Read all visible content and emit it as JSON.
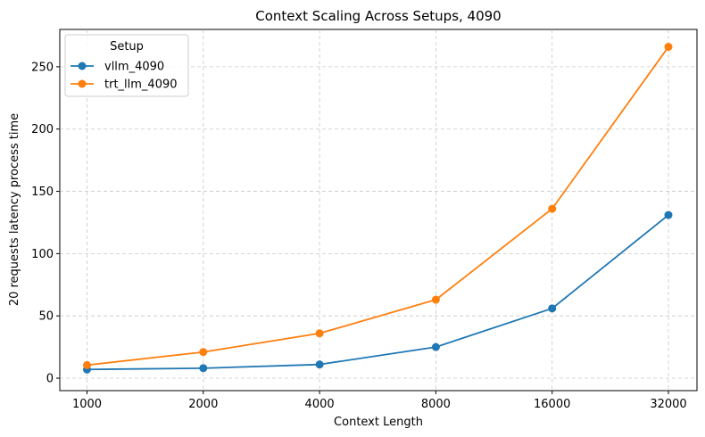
{
  "chart_data": {
    "type": "line",
    "title": "Context Scaling Across Setups, 4090",
    "xlabel": "Context Length",
    "ylabel": "20 requests latency process time",
    "categories": [
      "1000",
      "2000",
      "4000",
      "8000",
      "16000",
      "32000"
    ],
    "yticks": [
      0,
      50,
      100,
      150,
      200,
      250
    ],
    "ylim": [
      -10,
      280
    ],
    "grid": true,
    "legend": {
      "title": "Setup",
      "placement": "top-left"
    },
    "series": [
      {
        "name": "vllm_4090",
        "color": "#1f77b4",
        "values": [
          7,
          8,
          11,
          25,
          56,
          131
        ]
      },
      {
        "name": "trt_llm_4090",
        "color": "#ff7f0e",
        "values": [
          10.5,
          21,
          36,
          63,
          136,
          266
        ]
      }
    ]
  }
}
